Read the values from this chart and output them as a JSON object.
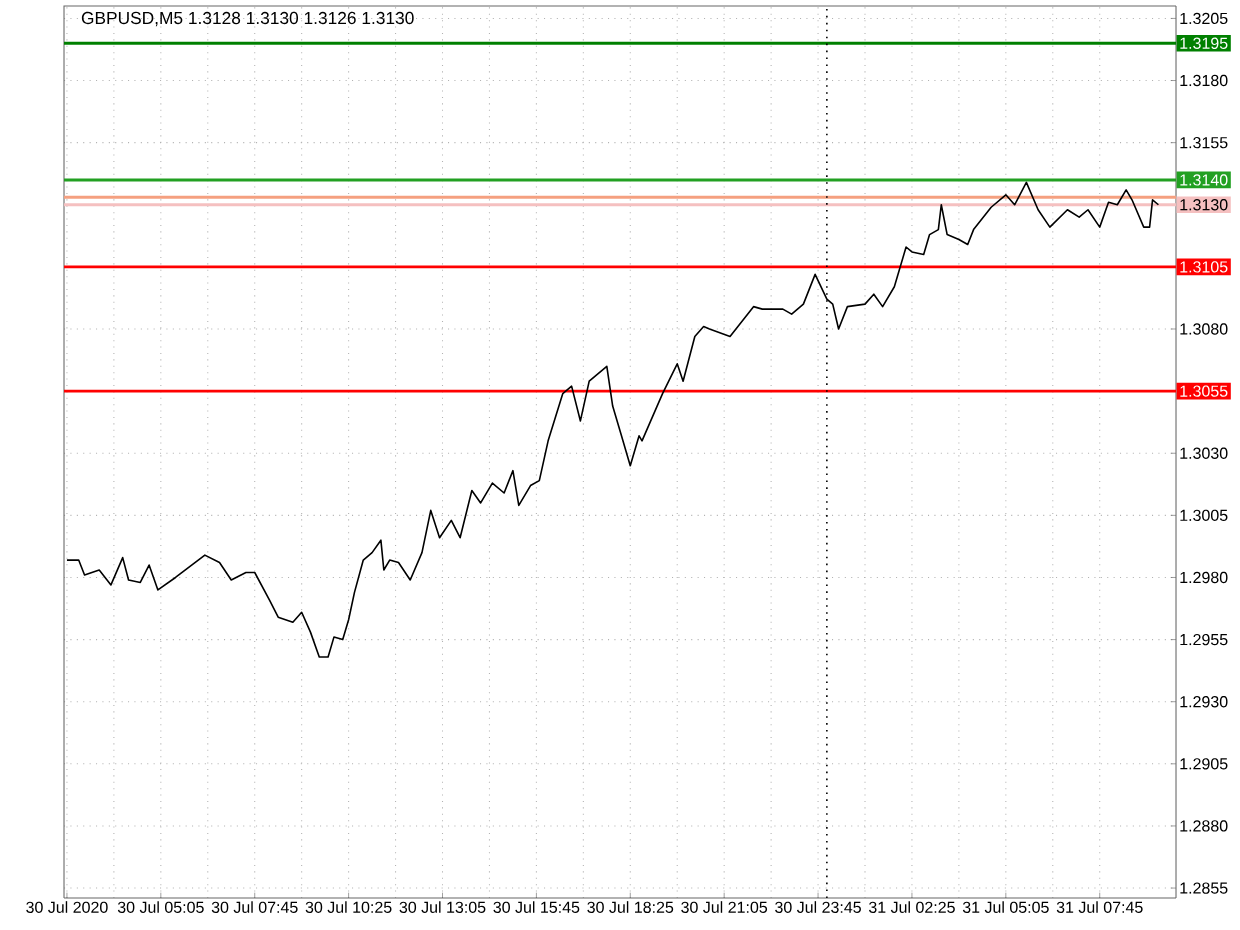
{
  "chart_data": {
    "type": "line",
    "title": "GBPUSD,M5  1.3128 1.3130 1.3126 1.3130",
    "x": [
      "2020-07-30T02:25",
      "2020-07-30T02:45",
      "2020-07-30T02:55",
      "2020-07-30T03:20",
      "2020-07-30T03:40",
      "2020-07-30T04:00",
      "2020-07-30T04:10",
      "2020-07-30T04:30",
      "2020-07-30T04:45",
      "2020-07-30T05:00",
      "2020-07-30T05:30",
      "2020-07-30T06:20",
      "2020-07-30T06:45",
      "2020-07-30T07:05",
      "2020-07-30T07:30",
      "2020-07-30T07:45",
      "2020-07-30T08:10",
      "2020-07-30T08:25",
      "2020-07-30T08:50",
      "2020-07-30T09:05",
      "2020-07-30T09:20",
      "2020-07-30T09:35",
      "2020-07-30T09:50",
      "2020-07-30T10:00",
      "2020-07-30T10:15",
      "2020-07-30T10:25",
      "2020-07-30T10:35",
      "2020-07-30T10:50",
      "2020-07-30T11:05",
      "2020-07-30T11:20",
      "2020-07-30T11:25",
      "2020-07-30T11:35",
      "2020-07-30T11:50",
      "2020-07-30T12:10",
      "2020-07-30T12:30",
      "2020-07-30T12:45",
      "2020-07-30T13:00",
      "2020-07-30T13:20",
      "2020-07-30T13:35",
      "2020-07-30T13:55",
      "2020-07-30T14:10",
      "2020-07-30T14:30",
      "2020-07-30T14:50",
      "2020-07-30T15:05",
      "2020-07-30T15:15",
      "2020-07-30T15:35",
      "2020-07-30T15:50",
      "2020-07-30T16:05",
      "2020-07-30T16:30",
      "2020-07-30T16:45",
      "2020-07-30T17:00",
      "2020-07-30T17:15",
      "2020-07-30T17:30",
      "2020-07-30T17:45",
      "2020-07-30T17:55",
      "2020-07-30T18:10",
      "2020-07-30T18:25",
      "2020-07-30T18:40",
      "2020-07-30T18:45",
      "2020-07-30T19:20",
      "2020-07-30T19:45",
      "2020-07-30T19:55",
      "2020-07-30T20:15",
      "2020-07-30T20:30",
      "2020-07-30T20:40",
      "2020-07-30T21:15",
      "2020-07-30T21:55",
      "2020-07-30T22:10",
      "2020-07-30T22:45",
      "2020-07-30T23:00",
      "2020-07-30T23:20",
      "2020-07-30T23:40",
      "2020-07-31T00:00",
      "2020-07-31T00:10",
      "2020-07-31T00:20",
      "2020-07-31T00:35",
      "2020-07-31T01:05",
      "2020-07-31T01:20",
      "2020-07-31T01:35",
      "2020-07-31T01:55",
      "2020-07-31T02:15",
      "2020-07-31T02:25",
      "2020-07-31T02:45",
      "2020-07-31T02:55",
      "2020-07-31T03:10",
      "2020-07-31T03:15",
      "2020-07-31T03:25",
      "2020-07-31T03:45",
      "2020-07-31T04:00",
      "2020-07-31T04:10",
      "2020-07-31T04:40",
      "2020-07-31T05:05",
      "2020-07-31T05:20",
      "2020-07-31T05:40",
      "2020-07-31T06:00",
      "2020-07-31T06:20",
      "2020-07-31T06:50",
      "2020-07-31T07:10",
      "2020-07-31T07:25",
      "2020-07-31T07:45",
      "2020-07-31T08:00",
      "2020-07-31T08:15",
      "2020-07-31T08:30",
      "2020-07-31T08:40",
      "2020-07-31T09:00",
      "2020-07-31T09:10",
      "2020-07-31T09:15",
      "2020-07-31T09:25"
    ],
    "values": [
      1.2987,
      1.2987,
      1.2981,
      1.2983,
      1.2977,
      1.2988,
      1.2979,
      1.2978,
      1.2985,
      1.2975,
      1.298,
      1.2989,
      1.2986,
      1.2979,
      1.2982,
      1.2982,
      1.2971,
      1.2964,
      1.2962,
      1.2966,
      1.2958,
      1.2948,
      1.2948,
      1.2956,
      1.2955,
      1.2963,
      1.2974,
      1.2987,
      1.299,
      1.2995,
      1.2983,
      1.2987,
      1.2986,
      1.2979,
      1.299,
      1.3007,
      1.2996,
      1.3003,
      1.2996,
      1.3015,
      1.301,
      1.3018,
      1.3014,
      1.3023,
      1.3009,
      1.3017,
      1.3019,
      1.3035,
      1.3054,
      1.3057,
      1.3043,
      1.3059,
      1.3062,
      1.3065,
      1.3049,
      1.3037,
      1.3025,
      1.3037,
      1.3035,
      1.3054,
      1.3066,
      1.3059,
      1.3077,
      1.3081,
      1.308,
      1.3077,
      1.3089,
      1.3088,
      1.3088,
      1.3086,
      1.309,
      1.3102,
      1.3092,
      1.309,
      1.308,
      1.3089,
      1.309,
      1.3094,
      1.3089,
      1.3097,
      1.3113,
      1.3111,
      1.311,
      1.3118,
      1.312,
      1.313,
      1.3118,
      1.3116,
      1.3114,
      1.312,
      1.3129,
      1.3134,
      1.313,
      1.3139,
      1.3128,
      1.3121,
      1.3128,
      1.3125,
      1.3128,
      1.3121,
      1.3131,
      1.313,
      1.3136,
      1.3132,
      1.3121,
      1.3121,
      1.3132,
      1.313
    ],
    "color": "#000000",
    "line_style": "solid",
    "xlim": [
      "2020-07-30T02:20",
      "2020-07-31T09:55"
    ],
    "ylim": [
      1.2851,
      1.321
    ],
    "xticks": [
      {
        "value": "2020-07-30T02:25",
        "label": "30 Jul 2020"
      },
      {
        "value": "2020-07-30T05:05",
        "label": "30 Jul 05:05"
      },
      {
        "value": "2020-07-30T07:45",
        "label": "30 Jul 07:45"
      },
      {
        "value": "2020-07-30T10:25",
        "label": "30 Jul 10:25"
      },
      {
        "value": "2020-07-30T13:05",
        "label": "30 Jul 13:05"
      },
      {
        "value": "2020-07-30T15:45",
        "label": "30 Jul 15:45"
      },
      {
        "value": "2020-07-30T18:25",
        "label": "30 Jul 18:25"
      },
      {
        "value": "2020-07-30T21:05",
        "label": "30 Jul 21:05"
      },
      {
        "value": "2020-07-30T23:45",
        "label": "30 Jul 23:45"
      },
      {
        "value": "2020-07-31T02:25",
        "label": "31 Jul 02:25"
      },
      {
        "value": "2020-07-31T05:05",
        "label": "31 Jul 05:05"
      },
      {
        "value": "2020-07-31T07:45",
        "label": "31 Jul 07:45"
      }
    ],
    "yticks": [
      1.2855,
      {
        "value": 1.288,
        "label": "1.2880"
      },
      1.2905,
      {
        "value": 1.293,
        "label": "1.2930"
      },
      1.2955,
      {
        "value": 1.298,
        "label": "1.2980"
      },
      1.3005,
      {
        "value": 1.303,
        "label": "1.3030"
      },
      {
        "value": 1.308,
        "label": "1.3080"
      },
      1.3155,
      {
        "value": 1.318,
        "label": "1.3180"
      },
      1.3205
    ],
    "grid": true,
    "ref_lines": [
      {
        "axis": "y",
        "value": 1.3195,
        "label": "1.3195",
        "color": "#008000"
      },
      {
        "axis": "y",
        "value": 1.314,
        "label": "1.3140",
        "color": "#22a022"
      },
      {
        "axis": "y",
        "value": 1.3133,
        "label": null,
        "color": "#f5a080"
      },
      {
        "axis": "y",
        "value": 1.313,
        "label": "1.3130",
        "color": "#f5c0c0"
      },
      {
        "axis": "y",
        "value": 1.3105,
        "label": "1.3105",
        "color": "#ff0000"
      },
      {
        "axis": "y",
        "value": 1.3055,
        "label": "1.3055",
        "color": "#ff0000"
      },
      {
        "axis": "x",
        "value": "2020-07-31T00:00",
        "label": null,
        "color": "#000000",
        "line_style": "dotted"
      }
    ]
  }
}
